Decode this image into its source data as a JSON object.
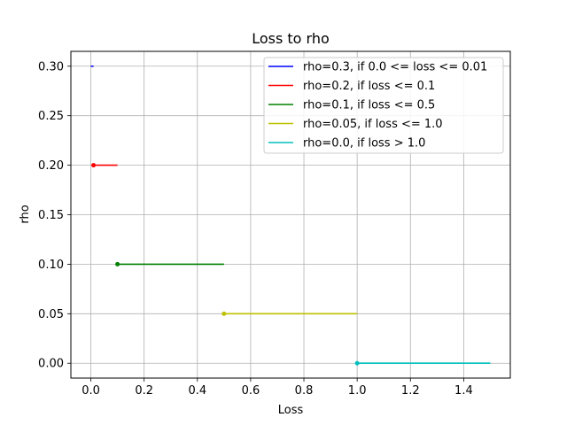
{
  "chart_data": {
    "type": "line",
    "title": "Loss to rho",
    "xlabel": "Loss",
    "ylabel": "rho",
    "xlim": [
      -0.075,
      1.575
    ],
    "ylim": [
      -0.015,
      0.315
    ],
    "grid": true,
    "legend_position": "top-right",
    "x_ticks": [
      0.0,
      0.2,
      0.4,
      0.6,
      0.8,
      1.0,
      1.2,
      1.4
    ],
    "x_tick_labels": [
      "0.0",
      "0.2",
      "0.4",
      "0.6",
      "0.8",
      "1.0",
      "1.2",
      "1.4"
    ],
    "y_ticks": [
      0.0,
      0.05,
      0.1,
      0.15,
      0.2,
      0.25,
      0.3
    ],
    "y_tick_labels": [
      "0.00",
      "0.05",
      "0.10",
      "0.15",
      "0.20",
      "0.25",
      "0.30"
    ],
    "series": [
      {
        "name": "rho=0.3, if 0.0 <= loss <= 0.01",
        "color": "#0000ff",
        "x": [
          0.0,
          0.01
        ],
        "y": [
          0.3,
          0.3
        ],
        "start_marker": false
      },
      {
        "name": "rho=0.2, if loss <= 0.1",
        "color": "#ff0000",
        "x": [
          0.01,
          0.1
        ],
        "y": [
          0.2,
          0.2
        ],
        "start_marker": true
      },
      {
        "name": "rho=0.1, if loss <= 0.5",
        "color": "#008000",
        "x": [
          0.1,
          0.5
        ],
        "y": [
          0.1,
          0.1
        ],
        "start_marker": true
      },
      {
        "name": "rho=0.05, if loss <= 1.0",
        "color": "#bfbf00",
        "x": [
          0.5,
          1.0
        ],
        "y": [
          0.05,
          0.05
        ],
        "start_marker": true
      },
      {
        "name": "rho=0.0, if loss > 1.0",
        "color": "#00bfbf",
        "x": [
          1.0,
          1.5
        ],
        "y": [
          0.0,
          0.0
        ],
        "start_marker": true
      }
    ]
  }
}
